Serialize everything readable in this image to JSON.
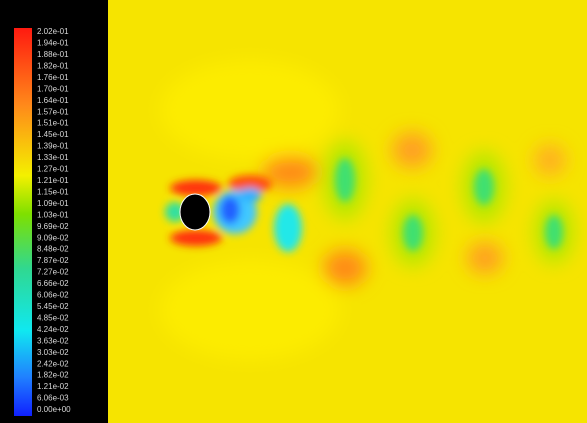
{
  "colorbar": {
    "labels": [
      "2.02e-01",
      "1.94e-01",
      "1.88e-01",
      "1.82e-01",
      "1.76e-01",
      "1.70e-01",
      "1.64e-01",
      "1.57e-01",
      "1.51e-01",
      "1.45e-01",
      "1.39e-01",
      "1.33e-01",
      "1.27e-01",
      "1.21e-01",
      "1.15e-01",
      "1.09e-01",
      "1.03e-01",
      "9.69e-02",
      "9.09e-02",
      "8.48e-02",
      "7.87e-02",
      "7.27e-02",
      "6.66e-02",
      "6.06e-02",
      "5.45e-02",
      "4.85e-02",
      "4.24e-02",
      "3.63e-02",
      "3.03e-02",
      "2.42e-02",
      "1.82e-02",
      "1.21e-02",
      "6.06e-03",
      "0.00e+00"
    ]
  }
}
